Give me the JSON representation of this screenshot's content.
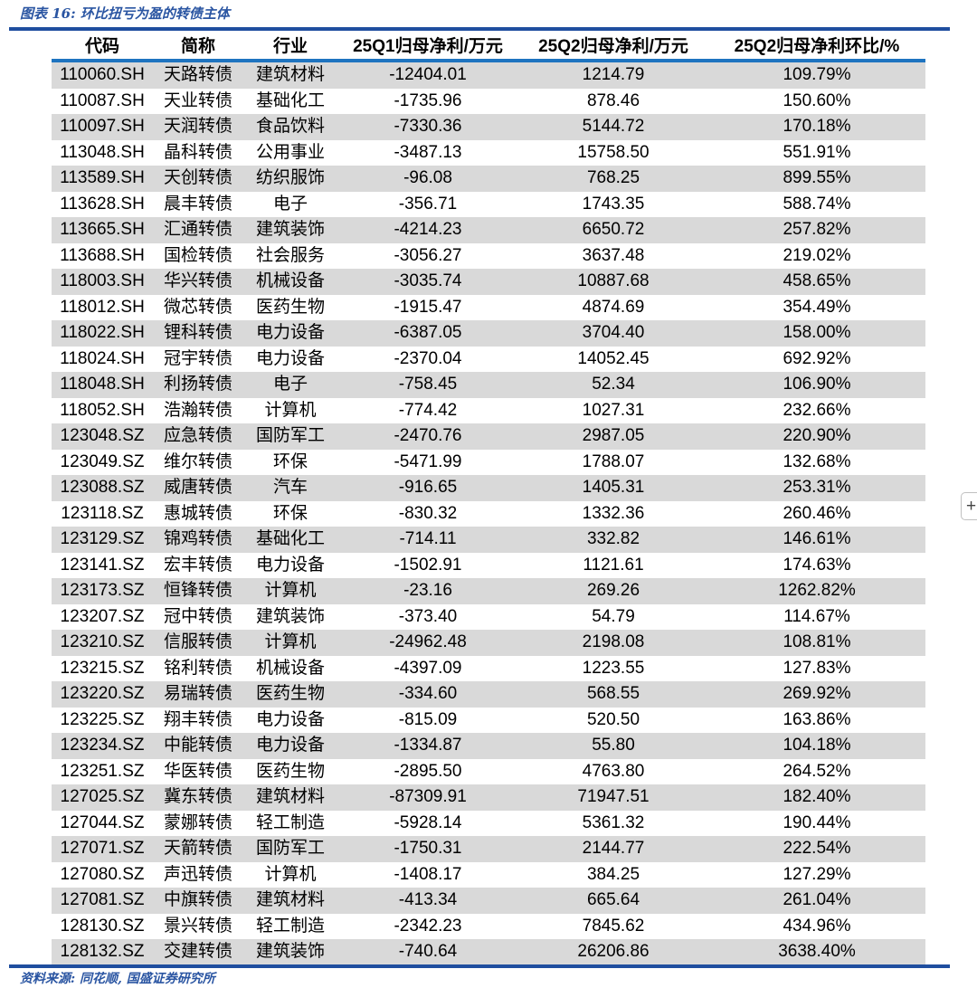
{
  "figure": {
    "title": "图表 16: 环比扭亏为盈的转债主体",
    "source": "资料来源: 同花顺, 国盛证券研究所"
  },
  "overlay": {
    "expand_button_label": "+"
  },
  "colors": {
    "rule_navy": "#1f4e9f",
    "rule_blue": "#1e74c0",
    "stripe": "#d9d9d9",
    "accent_text": "#2a55a2"
  },
  "chart_data": {
    "type": "table",
    "title": "图表 16: 环比扭亏为盈的转债主体",
    "columns": [
      "代码",
      "简称",
      "行业",
      "25Q1归母净利/万元",
      "25Q2归母净利/万元",
      "25Q2归母净利环比/%"
    ],
    "rows": [
      [
        "110060.SH",
        "天路转债",
        "建筑材料",
        "-12404.01",
        "1214.79",
        "109.79%"
      ],
      [
        "110087.SH",
        "天业转债",
        "基础化工",
        "-1735.96",
        "878.46",
        "150.60%"
      ],
      [
        "110097.SH",
        "天润转债",
        "食品饮料",
        "-7330.36",
        "5144.72",
        "170.18%"
      ],
      [
        "113048.SH",
        "晶科转债",
        "公用事业",
        "-3487.13",
        "15758.50",
        "551.91%"
      ],
      [
        "113589.SH",
        "天创转债",
        "纺织服饰",
        "-96.08",
        "768.25",
        "899.55%"
      ],
      [
        "113628.SH",
        "晨丰转债",
        "电子",
        "-356.71",
        "1743.35",
        "588.74%"
      ],
      [
        "113665.SH",
        "汇通转债",
        "建筑装饰",
        "-4214.23",
        "6650.72",
        "257.82%"
      ],
      [
        "113688.SH",
        "国检转债",
        "社会服务",
        "-3056.27",
        "3637.48",
        "219.02%"
      ],
      [
        "118003.SH",
        "华兴转债",
        "机械设备",
        "-3035.74",
        "10887.68",
        "458.65%"
      ],
      [
        "118012.SH",
        "微芯转债",
        "医药生物",
        "-1915.47",
        "4874.69",
        "354.49%"
      ],
      [
        "118022.SH",
        "锂科转债",
        "电力设备",
        "-6387.05",
        "3704.40",
        "158.00%"
      ],
      [
        "118024.SH",
        "冠宇转债",
        "电力设备",
        "-2370.04",
        "14052.45",
        "692.92%"
      ],
      [
        "118048.SH",
        "利扬转债",
        "电子",
        "-758.45",
        "52.34",
        "106.90%"
      ],
      [
        "118052.SH",
        "浩瀚转债",
        "计算机",
        "-774.42",
        "1027.31",
        "232.66%"
      ],
      [
        "123048.SZ",
        "应急转债",
        "国防军工",
        "-2470.76",
        "2987.05",
        "220.90%"
      ],
      [
        "123049.SZ",
        "维尔转债",
        "环保",
        "-5471.99",
        "1788.07",
        "132.68%"
      ],
      [
        "123088.SZ",
        "威唐转债",
        "汽车",
        "-916.65",
        "1405.31",
        "253.31%"
      ],
      [
        "123118.SZ",
        "惠城转债",
        "环保",
        "-830.32",
        "1332.36",
        "260.46%"
      ],
      [
        "123129.SZ",
        "锦鸡转债",
        "基础化工",
        "-714.11",
        "332.82",
        "146.61%"
      ],
      [
        "123141.SZ",
        "宏丰转债",
        "电力设备",
        "-1502.91",
        "1121.61",
        "174.63%"
      ],
      [
        "123173.SZ",
        "恒锋转债",
        "计算机",
        "-23.16",
        "269.26",
        "1262.82%"
      ],
      [
        "123207.SZ",
        "冠中转债",
        "建筑装饰",
        "-373.40",
        "54.79",
        "114.67%"
      ],
      [
        "123210.SZ",
        "信服转债",
        "计算机",
        "-24962.48",
        "2198.08",
        "108.81%"
      ],
      [
        "123215.SZ",
        "铭利转债",
        "机械设备",
        "-4397.09",
        "1223.55",
        "127.83%"
      ],
      [
        "123220.SZ",
        "易瑞转债",
        "医药生物",
        "-334.60",
        "568.55",
        "269.92%"
      ],
      [
        "123225.SZ",
        "翔丰转债",
        "电力设备",
        "-815.09",
        "520.50",
        "163.86%"
      ],
      [
        "123234.SZ",
        "中能转债",
        "电力设备",
        "-1334.87",
        "55.80",
        "104.18%"
      ],
      [
        "123251.SZ",
        "华医转债",
        "医药生物",
        "-2895.50",
        "4763.80",
        "264.52%"
      ],
      [
        "127025.SZ",
        "冀东转债",
        "建筑材料",
        "-87309.91",
        "71947.51",
        "182.40%"
      ],
      [
        "127044.SZ",
        "蒙娜转债",
        "轻工制造",
        "-5928.14",
        "5361.32",
        "190.44%"
      ],
      [
        "127071.SZ",
        "天箭转债",
        "国防军工",
        "-1750.31",
        "2144.77",
        "222.54%"
      ],
      [
        "127080.SZ",
        "声迅转债",
        "计算机",
        "-1408.17",
        "384.25",
        "127.29%"
      ],
      [
        "127081.SZ",
        "中旗转债",
        "建筑材料",
        "-413.34",
        "665.64",
        "261.04%"
      ],
      [
        "128130.SZ",
        "景兴转债",
        "轻工制造",
        "-2342.23",
        "7845.62",
        "434.96%"
      ],
      [
        "128132.SZ",
        "交建转债",
        "建筑装饰",
        "-740.64",
        "26206.86",
        "3638.40%"
      ]
    ]
  }
}
